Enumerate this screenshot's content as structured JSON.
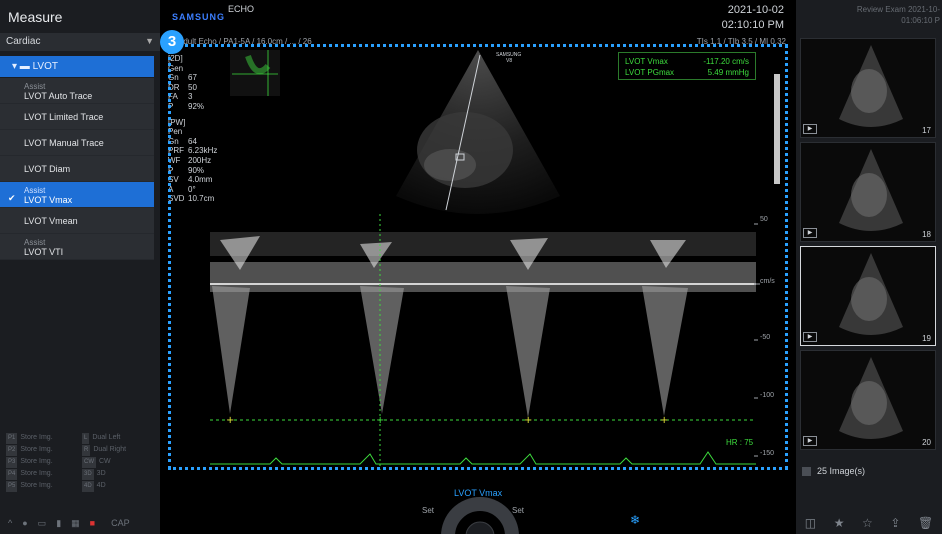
{
  "left": {
    "title": "Measure",
    "category": "Cardiac",
    "group": "LVOT",
    "items": [
      {
        "assist": "Assist",
        "label": "LVOT Auto Trace",
        "selected": false
      },
      {
        "assist": "",
        "label": "LVOT Limited Trace",
        "selected": false
      },
      {
        "assist": "",
        "label": "LVOT Manual Trace",
        "selected": false
      },
      {
        "assist": "",
        "label": "LVOT Diam",
        "selected": false
      },
      {
        "assist": "Assist",
        "label": "LVOT Vmax",
        "selected": true
      },
      {
        "assist": "",
        "label": "LVOT Vmean",
        "selected": false
      },
      {
        "assist": "Assist",
        "label": "LVOT VTI",
        "selected": false
      }
    ],
    "store": [
      {
        "tag1": "P1",
        "label1": "Store Img.",
        "tag2": "L",
        "label2": "Dual Left"
      },
      {
        "tag1": "P2",
        "label1": "Store Img.",
        "tag2": "R",
        "label2": "Dual Right"
      },
      {
        "tag1": "P3",
        "label1": "Store Img.",
        "tag2": "CW",
        "label2": "CW"
      },
      {
        "tag1": "P4",
        "label1": "Store Img.",
        "tag2": "3D",
        "label2": "3D"
      },
      {
        "tag1": "P5",
        "label1": "Store Img.",
        "tag2": "4D",
        "label2": "4D"
      }
    ],
    "cap": "CAP"
  },
  "main": {
    "brand": "SAMSUNG",
    "app": "ECHO",
    "date": "2021-10-02",
    "time": "02:10:10 PM",
    "probe": "Adult Echo / PA1-5A / 16.0cm / ... / 26",
    "ti": "TIs 1.1 / TIb 3.5 / MI 0.32",
    "badge": "3",
    "params_2d": [
      {
        "k": "[2D]",
        "v": ""
      },
      {
        "k": "Gen",
        "v": ""
      },
      {
        "k": "Gn",
        "v": "67"
      },
      {
        "k": "DR",
        "v": "50"
      },
      {
        "k": "FA",
        "v": "3"
      },
      {
        "k": "P",
        "v": "92%"
      }
    ],
    "params_pw": [
      {
        "k": "[PW]",
        "v": ""
      },
      {
        "k": "Pen",
        "v": ""
      },
      {
        "k": "Gn",
        "v": "64"
      },
      {
        "k": "PRF",
        "v": "6.23kHz"
      },
      {
        "k": "WF",
        "v": "200Hz"
      },
      {
        "k": "P",
        "v": "90%"
      },
      {
        "k": "SV",
        "v": "4.0mm"
      },
      {
        "k": "A",
        "v": "0°"
      },
      {
        "k": "SVD",
        "v": "10.7cm"
      }
    ],
    "measure": [
      {
        "name": "LVOT Vmax",
        "value": "-117.20",
        "unit": "cm/s"
      },
      {
        "name": "LVOT PGmax",
        "value": "5.49",
        "unit": "mmHg"
      }
    ],
    "hr": "HR : 75",
    "scale": [
      "50",
      "cm/s",
      "-50",
      "-100",
      "-150"
    ],
    "active_measure": "LVOT Vmax",
    "set_left": "Set",
    "set_right": "Set",
    "vb_label": "SAMSUNG\nV8"
  },
  "right": {
    "title": "Review Exam 2021-10-",
    "time": "01:06:10 P",
    "thumbs": [
      {
        "num": "17",
        "selected": false
      },
      {
        "num": "18",
        "selected": false
      },
      {
        "num": "19",
        "selected": true
      },
      {
        "num": "20",
        "selected": false
      }
    ],
    "count": "25 Image(s)"
  }
}
